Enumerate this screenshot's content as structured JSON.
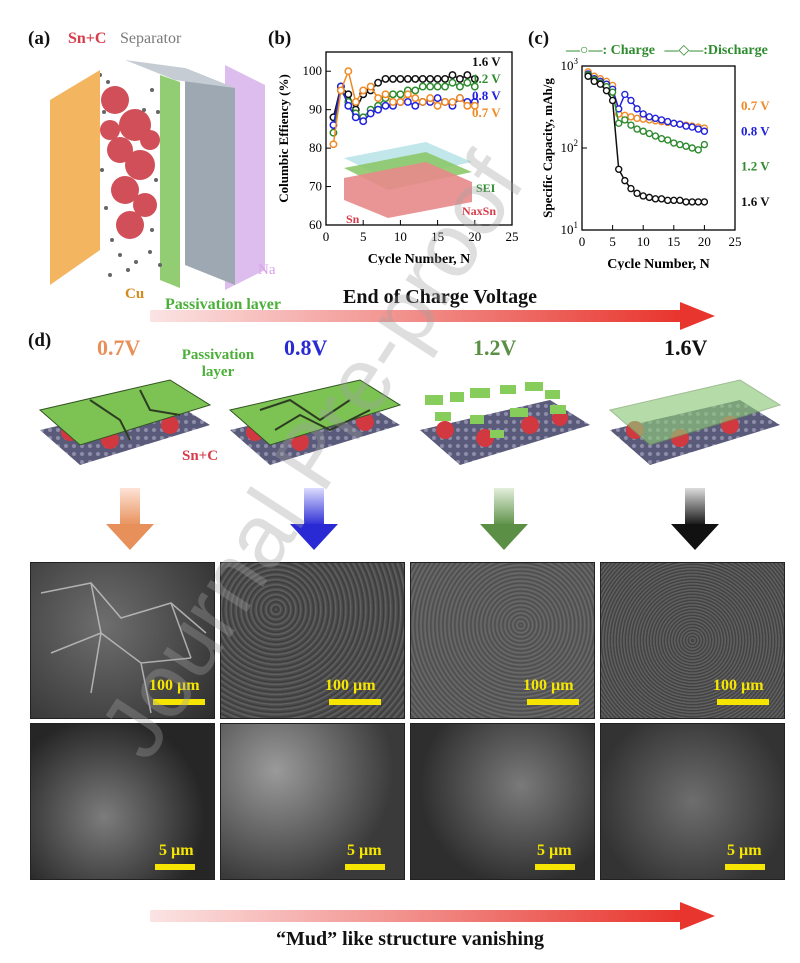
{
  "panels": {
    "a": {
      "label": "(a)",
      "sn_c": "Sn+C",
      "separator": "Separator",
      "na": "Na",
      "cu": "Cu",
      "passivation": "Passivation layer",
      "colors": {
        "cu": "#f4b561",
        "passivation": "#7fc35a",
        "separator": "#9ea8b2",
        "na": "#d9b6ec",
        "sn": "#c8313b"
      }
    },
    "b": {
      "label": "(b)",
      "inset_sei": "SEI",
      "inset_sn": "Sn",
      "inset_naxsn": "NaxSn"
    },
    "c": {
      "label": "(c)",
      "legend_charge": ": Charge",
      "legend_discharge": ":Discharge"
    },
    "d": {
      "label": "(d)",
      "passivation": "Passivation layer",
      "sn_c": "Sn+C",
      "voltages": [
        {
          "text": "0.7V",
          "color": "#e8905a"
        },
        {
          "text": "0.8V",
          "color": "#2a2ad4"
        },
        {
          "text": "1.2V",
          "color": "#5b8f45"
        },
        {
          "text": "1.6V",
          "color": "#111111"
        }
      ],
      "scale_top": "100 µm",
      "scale_bottom": "5 µm"
    }
  },
  "arrows": {
    "top": "End of Charge Voltage",
    "bottom": "“Mud” like structure vanishing"
  },
  "watermark": "Journal Pre-proof",
  "chart_data": [
    {
      "type": "line",
      "xlabel": "Cycle Number, N",
      "ylabel": "Columbic Effiency (%)",
      "xlim": [
        0,
        25
      ],
      "ylim": [
        60,
        105
      ],
      "xticks": [
        0,
        5,
        10,
        15,
        20,
        25
      ],
      "yticks": [
        60,
        70,
        80,
        90,
        100
      ],
      "x": [
        1,
        2,
        3,
        4,
        5,
        6,
        7,
        8,
        9,
        10,
        11,
        12,
        13,
        14,
        15,
        16,
        17,
        18,
        19,
        20
      ],
      "series": [
        {
          "name": "1.6 V",
          "color": "#111111",
          "values": [
            88,
            96,
            94,
            90,
            94,
            95,
            97,
            98,
            98,
            98,
            98,
            98,
            98,
            98,
            98,
            98,
            99,
            98,
            99,
            98
          ]
        },
        {
          "name": "1.2 V",
          "color": "#2e8b2e",
          "values": [
            84,
            95,
            92,
            89,
            88,
            90,
            91,
            93,
            94,
            94,
            95,
            95,
            96,
            96,
            96,
            96,
            97,
            96,
            97,
            96
          ]
        },
        {
          "name": "0.8 V",
          "color": "#2222dd",
          "values": [
            86,
            96,
            91,
            88,
            87,
            89,
            90,
            91,
            91,
            92,
            92,
            91,
            92,
            92,
            93,
            92,
            91,
            93,
            92,
            92
          ]
        },
        {
          "name": "0.7 V",
          "color": "#f08a24",
          "values": [
            81,
            95,
            100,
            92,
            95,
            96,
            93,
            94,
            92,
            92,
            94,
            93,
            92,
            93,
            91,
            92,
            92,
            93,
            91,
            91
          ]
        }
      ]
    },
    {
      "type": "line",
      "xlabel": "Cycle Number, N",
      "ylabel": "Specific Capacity, mAh/g",
      "yscale": "log",
      "xlim": [
        0,
        25
      ],
      "ylim": [
        10,
        1000
      ],
      "xticks": [
        0,
        5,
        10,
        15,
        20,
        25
      ],
      "yticks": [
        "10^1",
        "10^2",
        "10^3"
      ],
      "x": [
        1,
        2,
        3,
        4,
        5,
        6,
        7,
        8,
        9,
        10,
        11,
        12,
        13,
        14,
        15,
        16,
        17,
        18,
        19,
        20
      ],
      "series": [
        {
          "name": "0.7 V",
          "color": "#f08a24",
          "values": [
            850,
            750,
            700,
            650,
            580,
            260,
            250,
            240,
            230,
            225,
            220,
            215,
            210,
            205,
            200,
            195,
            190,
            185,
            180,
            175
          ]
        },
        {
          "name": "0.8 V",
          "color": "#2222dd",
          "values": [
            800,
            700,
            650,
            600,
            520,
            300,
            450,
            380,
            300,
            260,
            240,
            230,
            220,
            210,
            200,
            195,
            185,
            180,
            170,
            160
          ]
        },
        {
          "name": "1.2 V",
          "color": "#2e8b2e",
          "values": [
            780,
            680,
            620,
            560,
            480,
            200,
            220,
            190,
            170,
            160,
            150,
            140,
            130,
            125,
            115,
            110,
            105,
            100,
            95,
            110
          ]
        },
        {
          "name": "1.6 V",
          "color": "#111111",
          "values": [
            750,
            650,
            600,
            500,
            380,
            55,
            40,
            32,
            28,
            26,
            25,
            24,
            24,
            23,
            23,
            23,
            22,
            22,
            22,
            22
          ]
        }
      ]
    }
  ]
}
